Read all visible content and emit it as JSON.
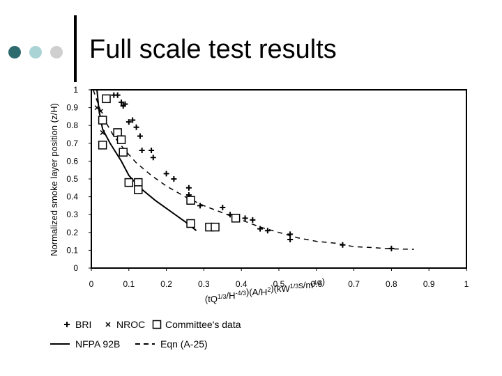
{
  "slide": {
    "title": "Full scale test results",
    "bullet_colors": [
      "#2e6b6e",
      "#a9d3d4",
      "#cfcfcf"
    ]
  },
  "chart_data": {
    "type": "scatter",
    "xlabel": "(tQ1/3/H-4/3)(A/H2)(kW1/3s/m4/3)",
    "ylabel": "Normalized smoke layer position (z/H)",
    "xlim": [
      0,
      1
    ],
    "ylim": [
      0,
      1
    ],
    "x_ticks": [
      "0",
      "0.1",
      "0.2",
      "0.3",
      "0.4",
      "0.5",
      "0.6",
      "0.7",
      "0.8",
      "0.9",
      "1"
    ],
    "y_ticks": [
      "0",
      "0.1",
      "0.2",
      "0.3",
      "0.4",
      "0.5",
      "0.6",
      "0.7",
      "0.8",
      "0.9",
      "1"
    ],
    "legend": [
      {
        "symbol": "plus",
        "label": "BRI"
      },
      {
        "symbol": "cross",
        "label": "NROC"
      },
      {
        "symbol": "square",
        "label": "Committee's data"
      },
      {
        "symbol": "solid",
        "label": "NFPA 92B"
      },
      {
        "symbol": "dashed",
        "label": "Eqn (A-25)"
      }
    ],
    "series": [
      {
        "name": "BRI",
        "marker": "plus",
        "points": [
          [
            0.06,
            0.97
          ],
          [
            0.07,
            0.97
          ],
          [
            0.08,
            0.93
          ],
          [
            0.085,
            0.91
          ],
          [
            0.09,
            0.92
          ],
          [
            0.1,
            0.82
          ],
          [
            0.11,
            0.83
          ],
          [
            0.12,
            0.79
          ],
          [
            0.13,
            0.74
          ],
          [
            0.135,
            0.66
          ],
          [
            0.16,
            0.66
          ],
          [
            0.165,
            0.62
          ],
          [
            0.2,
            0.53
          ],
          [
            0.22,
            0.5
          ],
          [
            0.26,
            0.45
          ],
          [
            0.26,
            0.41
          ],
          [
            0.29,
            0.35
          ],
          [
            0.35,
            0.34
          ],
          [
            0.37,
            0.3
          ],
          [
            0.41,
            0.28
          ],
          [
            0.43,
            0.27
          ],
          [
            0.45,
            0.22
          ],
          [
            0.47,
            0.21
          ],
          [
            0.53,
            0.19
          ],
          [
            0.53,
            0.16
          ],
          [
            0.67,
            0.13
          ],
          [
            0.8,
            0.11
          ]
        ]
      },
      {
        "name": "NROC",
        "marker": "cross",
        "points": [
          [
            0.015,
            0.9
          ],
          [
            0.025,
            0.88
          ],
          [
            0.03,
            0.76
          ],
          [
            0.035,
            0.84
          ]
        ]
      },
      {
        "name": "Committee's data",
        "marker": "square",
        "points": [
          [
            0.04,
            0.95
          ],
          [
            0.03,
            0.83
          ],
          [
            0.03,
            0.69
          ],
          [
            0.07,
            0.76
          ],
          [
            0.08,
            0.72
          ],
          [
            0.085,
            0.65
          ],
          [
            0.1,
            0.48
          ],
          [
            0.125,
            0.48
          ],
          [
            0.125,
            0.44
          ],
          [
            0.265,
            0.38
          ],
          [
            0.265,
            0.25
          ],
          [
            0.315,
            0.23
          ],
          [
            0.33,
            0.23
          ],
          [
            0.385,
            0.28
          ]
        ]
      },
      {
        "name": "NFPA 92B",
        "line": "solid",
        "points": [
          [
            0.015,
            1.0
          ],
          [
            0.02,
            0.89
          ],
          [
            0.03,
            0.78
          ],
          [
            0.05,
            0.7
          ],
          [
            0.08,
            0.6
          ],
          [
            0.1,
            0.52
          ],
          [
            0.13,
            0.45
          ],
          [
            0.17,
            0.38
          ],
          [
            0.21,
            0.32
          ],
          [
            0.25,
            0.26
          ],
          [
            0.28,
            0.21
          ]
        ]
      },
      {
        "name": "Eqn (A-25)",
        "line": "dashed",
        "points": [
          [
            0.005,
            1.0
          ],
          [
            0.03,
            0.85
          ],
          [
            0.06,
            0.74
          ],
          [
            0.09,
            0.66
          ],
          [
            0.12,
            0.59
          ],
          [
            0.16,
            0.52
          ],
          [
            0.2,
            0.46
          ],
          [
            0.25,
            0.4
          ],
          [
            0.3,
            0.35
          ],
          [
            0.35,
            0.31
          ],
          [
            0.4,
            0.27
          ],
          [
            0.45,
            0.23
          ],
          [
            0.5,
            0.2
          ],
          [
            0.55,
            0.17
          ],
          [
            0.6,
            0.15
          ],
          [
            0.65,
            0.14
          ],
          [
            0.7,
            0.12
          ],
          [
            0.75,
            0.115
          ],
          [
            0.8,
            0.108
          ],
          [
            0.86,
            0.105
          ]
        ]
      }
    ]
  }
}
